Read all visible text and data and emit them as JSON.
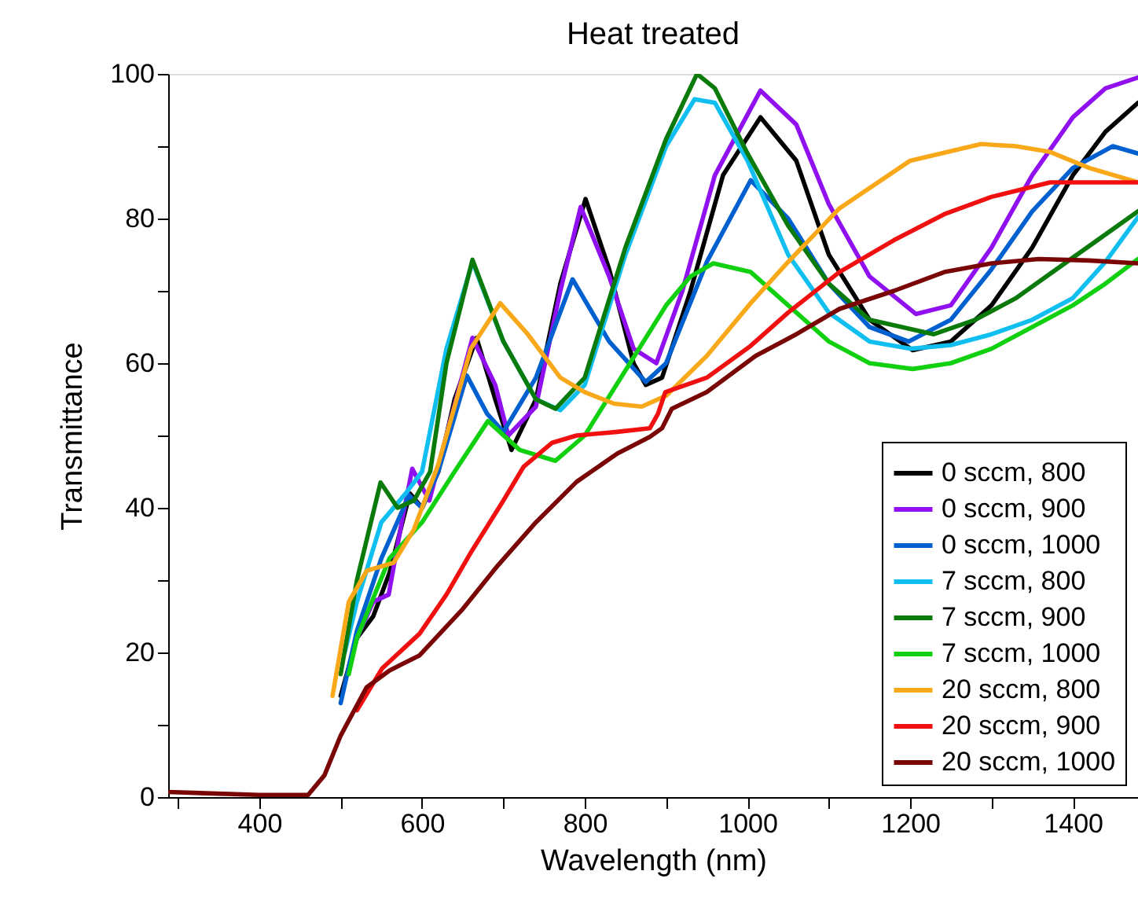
{
  "chart_data": {
    "type": "line",
    "title": "Heat treated",
    "xlabel": "Wavelength (nm)",
    "ylabel": "Transmittance",
    "xlim": [
      288,
      1480
    ],
    "ylim": [
      0,
      100
    ],
    "xticks": [
      {
        "value": 300,
        "label": null
      },
      400,
      {
        "value": 500,
        "label": null
      },
      600,
      {
        "value": 700,
        "label": null
      },
      800,
      {
        "value": 900,
        "label": null
      },
      1000,
      {
        "value": 1100,
        "label": null
      },
      1200,
      {
        "value": 1300,
        "label": null
      },
      1400
    ],
    "yticks": [
      0,
      {
        "value": 10,
        "label": null
      },
      20,
      {
        "value": 30,
        "label": null
      },
      40,
      {
        "value": 50,
        "label": null
      },
      60,
      {
        "value": 70,
        "label": null
      },
      80,
      {
        "value": 90,
        "label": null
      },
      100
    ],
    "legend": "bottom right",
    "series": [
      {
        "name": "0 sccm, 800",
        "color": "#000000",
        "x": [
          500,
          520,
          540,
          560,
          585,
          600,
          620,
          640,
          667,
          690,
          710,
          740,
          770,
          801,
          830,
          860,
          875,
          895,
          930,
          970,
          1016,
          1060,
          1100,
          1150,
          1203,
          1250,
          1300,
          1350,
          1400,
          1440,
          1480
        ],
        "values": [
          14,
          22,
          25,
          31,
          42,
          40,
          45,
          55,
          63.5,
          55,
          48,
          55,
          71,
          82.7,
          73,
          60,
          57,
          58,
          70,
          86,
          94,
          88,
          75,
          66,
          61.8,
          63,
          68,
          76,
          86,
          92,
          96
        ]
      },
      {
        "name": "0 sccm, 900",
        "color": "#9010f0",
        "x": [
          510,
          520,
          540,
          559,
          575,
          588,
          609,
          630,
          662,
          690,
          706,
          740,
          770,
          795,
          830,
          860,
          888,
          920,
          960,
          1016,
          1060,
          1100,
          1150,
          1207,
          1250,
          1300,
          1350,
          1400,
          1440,
          1480
        ],
        "values": [
          18,
          22,
          27,
          28,
          38,
          45.4,
          41,
          50,
          63.5,
          57,
          50,
          54,
          70,
          81.6,
          72,
          62,
          60,
          70,
          86,
          97.7,
          93,
          82,
          72,
          66.8,
          68,
          76,
          86,
          94,
          98,
          99.5
        ]
      },
      {
        "name": "0 sccm, 1000",
        "color": "#0060d0",
        "x": [
          500,
          520,
          550,
          584,
          600,
          620,
          655,
          680,
          700,
          740,
          785,
          830,
          875,
          900,
          950,
          1004,
          1050,
          1100,
          1150,
          1198,
          1250,
          1300,
          1350,
          1400,
          1449,
          1480
        ],
        "values": [
          13,
          23,
          33,
          41.7,
          40,
          45,
          58.3,
          53,
          50.5,
          58,
          71.6,
          63,
          57.4,
          60,
          74,
          85.3,
          80,
          71,
          65,
          63,
          66,
          73,
          81,
          87,
          90,
          89
        ]
      },
      {
        "name": "7 sccm, 800",
        "color": "#10bff0",
        "x": [
          505,
          520,
          550,
          580,
          600,
          630,
          662,
          700,
          740,
          770,
          800,
          850,
          900,
          935,
          960,
          1000,
          1050,
          1100,
          1150,
          1200,
          1250,
          1300,
          1350,
          1400,
          1440,
          1480
        ],
        "values": [
          20,
          27,
          38,
          42,
          45,
          62,
          74,
          63,
          55,
          53.5,
          57,
          75,
          90,
          96.5,
          96,
          88,
          75,
          67,
          63,
          62,
          62.5,
          64,
          66,
          69,
          74,
          80.2
        ]
      },
      {
        "name": "7 sccm, 900",
        "color": "#0a7a0a",
        "x": [
          500,
          520,
          549,
          570,
          590,
          610,
          630,
          662,
          700,
          740,
          764,
          800,
          850,
          900,
          938,
          960,
          1000,
          1050,
          1100,
          1150,
          1229,
          1280,
          1330,
          1380,
          1430,
          1480
        ],
        "values": [
          17,
          30,
          43.5,
          40,
          41,
          45,
          60,
          74.3,
          63,
          55,
          53.7,
          58,
          76,
          91,
          100,
          98,
          89,
          79,
          71,
          66,
          64,
          66,
          69,
          73,
          77,
          81
        ]
      },
      {
        "name": "7 sccm, 1000",
        "color": "#10d010",
        "x": [
          510,
          520,
          560,
          600,
          640,
          681,
          720,
          764,
          800,
          850,
          900,
          930,
          958,
          1004,
          1050,
          1100,
          1150,
          1203,
          1250,
          1300,
          1350,
          1400,
          1440,
          1480
        ],
        "values": [
          17,
          22,
          33,
          38,
          45,
          52,
          48,
          46.5,
          50,
          59,
          68,
          72,
          73.8,
          72.6,
          68,
          63,
          60,
          59.2,
          60,
          62,
          65,
          68,
          71,
          74.4
        ]
      },
      {
        "name": "20 sccm, 800",
        "color": "#f8a818",
        "x": [
          490,
          510,
          532,
          565,
          590,
          620,
          660,
          696,
          730,
          770,
          800,
          836,
          870,
          900,
          950,
          1004,
          1050,
          1113,
          1200,
          1287,
          1330,
          1372,
          1420,
          1480
        ],
        "values": [
          14,
          27,
          31.3,
          32.4,
          37,
          46,
          62,
          68.3,
          64,
          58,
          56,
          54.4,
          54,
          55.5,
          61,
          68.3,
          74,
          81.4,
          88,
          90.3,
          90,
          89.2,
          87,
          85
        ]
      },
      {
        "name": "20 sccm, 900",
        "color": "#f01010",
        "x": [
          520,
          551,
          597,
          630,
          661,
          700,
          725,
          760,
          790,
          840,
          880,
          890,
          899,
          950,
          1004,
          1050,
          1113,
          1180,
          1242,
          1300,
          1372,
          1430,
          1480
        ],
        "values": [
          12,
          17.8,
          22.6,
          28,
          34,
          41,
          45.7,
          49,
          50,
          50.5,
          51,
          53,
          56,
          58,
          62.4,
          67,
          72.6,
          77,
          80.6,
          83,
          85,
          85,
          85
        ]
      },
      {
        "name": "20 sccm, 1000",
        "color": "#7a0505",
        "x": [
          288,
          400,
          460,
          480,
          500,
          532,
          560,
          597,
          650,
          693,
          740,
          790,
          840,
          880,
          895,
          907,
          950,
          1010,
          1060,
          1113,
          1180,
          1242,
          1300,
          1358,
          1420,
          1480
        ],
        "values": [
          0.7,
          0.3,
          0.3,
          3,
          8.5,
          15.2,
          17.5,
          19.6,
          26,
          32,
          38,
          43.6,
          47.5,
          49.8,
          51,
          53.7,
          56,
          61,
          64,
          67.5,
          70,
          72.6,
          73.8,
          74.4,
          74.2,
          73.8
        ]
      }
    ]
  }
}
